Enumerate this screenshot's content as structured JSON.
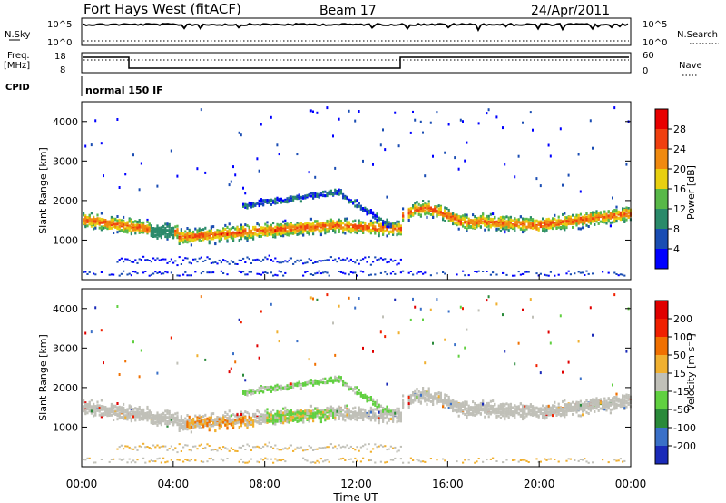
{
  "header": {
    "title": "Fort Hays West (fitACF)",
    "beam": "Beam 17",
    "date": "24/Apr/2011"
  },
  "panels": {
    "nsky_label": "N.Sky",
    "nsky_top": "10^5",
    "nsky_bottom": "10^0",
    "nsearch_label": "N.Search",
    "freq_label": "Freq.",
    "freq_unit": "[MHz]",
    "freq_ticks": [
      "18",
      "8"
    ],
    "nave_label": "Nave",
    "nave_ticks": [
      "60",
      "0"
    ],
    "cpid_label": "CPID",
    "cpid_value": "normal 150 IF"
  },
  "colors": {
    "power": [
      "#0000ff",
      "#1a4db3",
      "#2a8a6a",
      "#58b848",
      "#e8d010",
      "#f08a10",
      "#f04010",
      "#e80000"
    ],
    "velocity": [
      "#1a2ab8",
      "#3a70c8",
      "#2a8a3a",
      "#60d040",
      "#c0c0b8",
      "#f0b030",
      "#f07000",
      "#f02000",
      "#e00000"
    ]
  },
  "chart_data": [
    {
      "type": "heatmap",
      "name": "power",
      "ylabel": "Slant Range [km]",
      "yticks": [
        "4000",
        "3000",
        "2000",
        "1000"
      ],
      "ylim": [
        0,
        4500
      ],
      "colorbar_label": "Power [dB]",
      "colorbar_ticks": [
        "28",
        "24",
        "20",
        "16",
        "12",
        "8",
        "4"
      ]
    },
    {
      "type": "heatmap",
      "name": "velocity",
      "ylabel": "Slant Range [km]",
      "yticks": [
        "4000",
        "3000",
        "2000",
        "1000"
      ],
      "ylim": [
        0,
        4500
      ],
      "colorbar_label": "Velocity [m s⁻¹]",
      "colorbar_ticks": [
        "200",
        "100",
        "50",
        "15",
        "-15",
        "-50",
        "-100",
        "-200"
      ]
    }
  ],
  "x_axis": {
    "ticks": [
      "00:00",
      "04:00",
      "08:00",
      "12:00",
      "16:00",
      "20:00",
      "00:00"
    ],
    "label": "Time UT"
  }
}
